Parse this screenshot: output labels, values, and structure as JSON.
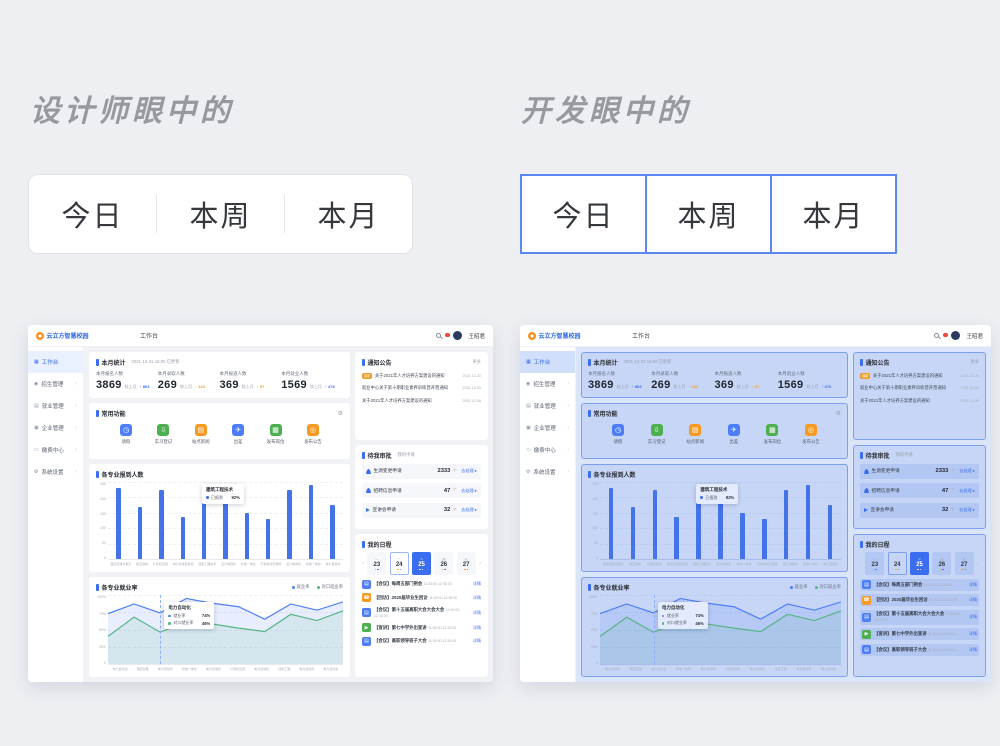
{
  "page": {
    "background": "#edeff3",
    "designer": {
      "heading": "设计师眼中的"
    },
    "developer": {
      "heading": "开发眼中的"
    },
    "tabs": [
      "今日",
      "本周",
      "本月"
    ],
    "dev_box_border": "#5b87f0"
  },
  "chart_data": [
    {
      "type": "bar",
      "title": "各专业报到人数",
      "categories": [
        "酒店管理与数字化",
        "航空运输",
        "计算机应用",
        "电力系统自动化",
        "建筑工程技术",
        "设计电算化",
        "机电一体化",
        "汽车检测与维修",
        "设计电算化",
        "机电一体化",
        "电力自动化"
      ],
      "values": [
        230,
        170,
        225,
        135,
        230,
        245,
        150,
        130,
        225,
        240,
        175
      ],
      "ylim": [
        0,
        250
      ],
      "yticks": [
        "250",
        "200",
        "150",
        "100",
        "50",
        "0"
      ],
      "color": "#4472e8",
      "grid": true,
      "tooltip": {
        "title": "建筑工程技术",
        "label": "已报到",
        "value": "92%",
        "index": 4
      }
    },
    {
      "type": "area",
      "title": "各专业就业率",
      "categories": [
        "电力自动化",
        "酒店管理",
        "电力自动化",
        "机电一体化",
        "电力自动化",
        "计算机应用",
        "电力自动化",
        "建筑工程",
        "电力自动化",
        "电力自动化"
      ],
      "series": [
        {
          "name": "就业率",
          "color": "#4d7ef7",
          "values": [
            73,
            87,
            74,
            95,
            88,
            83,
            65,
            87,
            78,
            90
          ]
        },
        {
          "name": "对口就业率",
          "color": "#57b586",
          "values": [
            40,
            68,
            46,
            62,
            58,
            52,
            47,
            72,
            63,
            77
          ]
        }
      ],
      "ylim": [
        0,
        100
      ],
      "yticks": [
        "100%",
        "75%",
        "50%",
        "25%",
        "0"
      ],
      "grid": true,
      "legend_position": "top-right",
      "tooltip": {
        "title": "电力自动化",
        "index": 2,
        "rows": [
          {
            "label": "就业率",
            "value": "74%"
          },
          {
            "label": "对口就业率",
            "value": "46%"
          }
        ]
      }
    }
  ],
  "dashboard": {
    "colors": {
      "primary": "#3a6df0",
      "green": "#4cb050",
      "orange": "#f59a23",
      "red": "#f0483e"
    },
    "topbar": {
      "logo_text": "云立方智慧校园",
      "tab": "工作台",
      "user_name": "王昭君"
    },
    "sidebar": {
      "items": [
        {
          "label": "工作台",
          "icon": "dashboard-icon",
          "glyph": "▦",
          "active": true
        },
        {
          "label": "招生管理",
          "icon": "admissions-icon",
          "glyph": "◉"
        },
        {
          "label": "就业管理",
          "icon": "employment-icon",
          "glyph": "▤"
        },
        {
          "label": "企业管理",
          "icon": "enterprise-icon",
          "glyph": "▣"
        },
        {
          "label": "缴费中心",
          "icon": "payment-icon",
          "glyph": "▭"
        },
        {
          "label": "系统设置",
          "icon": "settings-icon",
          "glyph": "⚙"
        }
      ]
    },
    "stats": {
      "title": "本月统计",
      "updated": "2021-12-31 16:00 已更新",
      "compare_label": "较上月",
      "items": [
        {
          "label": "本月报名人数",
          "value": "3869",
          "delta": "↑ 803",
          "delta_color": "#3a6df0"
        },
        {
          "label": "本月录取人数",
          "value": "269",
          "delta": "↑ 123",
          "delta_color": "#f59a23"
        },
        {
          "label": "本月报道人数",
          "value": "369",
          "delta": "↑ 97",
          "delta_color": "#f59a23"
        },
        {
          "label": "本月就业人数",
          "value": "1569",
          "delta": "↑ 476",
          "delta_color": "#3a6df0"
        }
      ]
    },
    "quick": {
      "title": "常用功能",
      "gear_glyph": "⚙",
      "items": [
        {
          "label": "请假",
          "color": "#4d7ef7",
          "glyph": "◷",
          "icon": "leave-clock-icon"
        },
        {
          "label": "实习登记",
          "color": "#4cb050",
          "glyph": "⇩",
          "icon": "internship-icon"
        },
        {
          "label": "站点新闻",
          "color": "#f59a23",
          "glyph": "▤",
          "icon": "site-news-icon"
        },
        {
          "label": "出差",
          "color": "#4d7ef7",
          "glyph": "✈",
          "icon": "business-trip-icon"
        },
        {
          "label": "发布岗位",
          "color": "#4cb050",
          "glyph": "▦",
          "icon": "post-job-icon"
        },
        {
          "label": "发布公告",
          "color": "#f59a23",
          "glyph": "◎",
          "icon": "announcement-icon"
        }
      ]
    },
    "notices": {
      "title": "通知公告",
      "more": "更多",
      "items": [
        {
          "badge": "最新",
          "text": "关于2021年人才培养方案建设的通知",
          "date": "2021.12.20"
        },
        {
          "badge": "",
          "text": "就业中心关于第十期职业素养训练营开营通知",
          "date": "2021.12.09"
        },
        {
          "badge": "",
          "text": "关于2021年人才培养方案建设的通知",
          "date": "2021.12.08"
        }
      ]
    },
    "approvals": {
      "title": "待我审批",
      "subtitle": "我的申请",
      "action": "去处理 ▸",
      "items": [
        {
          "label": "生源变更申请",
          "count": "2333",
          "unit": "个",
          "icon": "person-icon"
        },
        {
          "label": "招聘信息申请",
          "count": "47",
          "unit": "个",
          "icon": "person-icon"
        },
        {
          "label": "宣讲会申请",
          "count": "32",
          "unit": "个",
          "icon": "megaphone-icon"
        }
      ]
    },
    "schedule": {
      "title": "我的日程",
      "detail": "详情",
      "time": "11:30:00-12:30:00",
      "days": [
        {
          "week": "一",
          "date": "23",
          "state": ""
        },
        {
          "week": "二",
          "date": "24",
          "state": "today"
        },
        {
          "week": "三",
          "date": "25",
          "state": "selected"
        },
        {
          "week": "四",
          "date": "26",
          "state": ""
        },
        {
          "week": "五",
          "date": "27",
          "state": ""
        }
      ],
      "items": [
        {
          "title": "【会议】每周五部门例会",
          "color": "#4d7ef7",
          "glyph": "▤",
          "icon": "meeting-icon"
        },
        {
          "title": "【回访】2020届毕业生回访",
          "color": "#f59a23",
          "glyph": "☎",
          "icon": "callback-icon"
        },
        {
          "title": "【会议】第十五届高职大会大会大会",
          "color": "#4d7ef7",
          "glyph": "▤",
          "icon": "meeting-icon"
        },
        {
          "title": "【宣讲】第七中学外出宣讲",
          "color": "#4cb050",
          "glyph": "▶",
          "icon": "presentation-icon"
        },
        {
          "title": "【会议】高职领导班子大会",
          "color": "#4d7ef7",
          "glyph": "▤",
          "icon": "meeting-icon"
        }
      ]
    }
  }
}
